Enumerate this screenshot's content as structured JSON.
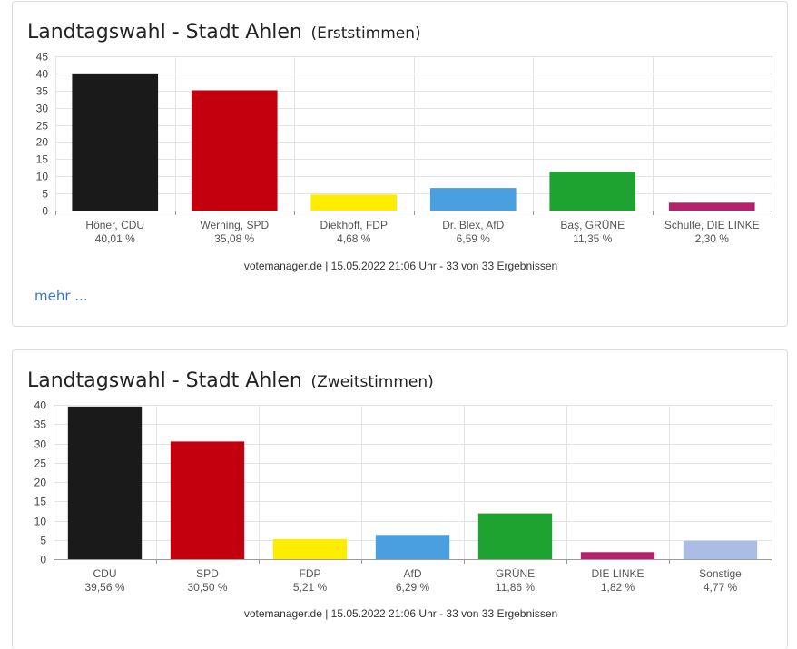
{
  "chart_data": [
    {
      "type": "bar",
      "title": "Landtagswahl - Stadt Ahlen",
      "subtitle": "(Erststimmen)",
      "categories": [
        "Höner, CDU",
        "Werning, SPD",
        "Diekhoff, FDP",
        "Dr. Blex, AfD",
        "Baş, GRÜNE",
        "Schulte, DIE LINKE"
      ],
      "value_labels": [
        "40,01 %",
        "35,08 %",
        "4,68 %",
        "6,59 %",
        "11,35 %",
        "2,30 %"
      ],
      "values": [
        40.01,
        35.08,
        4.68,
        6.59,
        11.35,
        2.3
      ],
      "colors": [
        "#1a1a1a",
        "#c4000f",
        "#ffed00",
        "#4a9fe0",
        "#1ea331",
        "#b3226a"
      ],
      "ylim": [
        0,
        45
      ],
      "yticks": [
        0,
        5,
        10,
        15,
        20,
        25,
        30,
        35,
        40,
        45
      ],
      "grid": true,
      "source": "votemanager.de | 15.05.2022 21:06 Uhr - 33 von 33 Ergebnissen",
      "more_label": "mehr ..."
    },
    {
      "type": "bar",
      "title": "Landtagswahl - Stadt Ahlen",
      "subtitle": "(Zweitstimmen)",
      "categories": [
        "CDU",
        "SPD",
        "FDP",
        "AfD",
        "GRÜNE",
        "DIE LINKE",
        "Sonstige"
      ],
      "value_labels": [
        "39,56 %",
        "30,50 %",
        "5,21 %",
        "6,29 %",
        "11,86 %",
        "1,82 %",
        "4,77 %"
      ],
      "values": [
        39.56,
        30.5,
        5.21,
        6.29,
        11.86,
        1.82,
        4.77
      ],
      "colors": [
        "#1a1a1a",
        "#c4000f",
        "#ffed00",
        "#4a9fe0",
        "#1ea331",
        "#b3226a",
        "#abbde6"
      ],
      "ylim": [
        0,
        40
      ],
      "yticks": [
        0,
        5,
        10,
        15,
        20,
        25,
        30,
        35,
        40
      ],
      "grid": true,
      "source": "votemanager.de | 15.05.2022 21:06 Uhr - 33 von 33 Ergebnissen"
    }
  ]
}
